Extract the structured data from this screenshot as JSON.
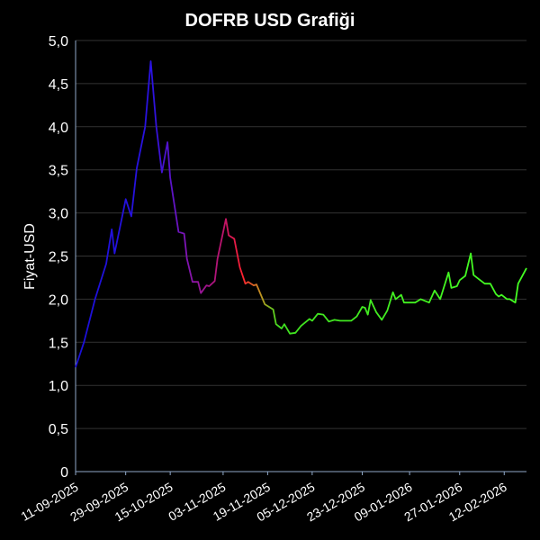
{
  "chart_data": {
    "type": "line",
    "title": "DOFRB USD Grafiği",
    "xlabel": "",
    "ylabel": "Fiyat-USD",
    "ylim": [
      0,
      5.0
    ],
    "yticks": [
      "0",
      "0,5",
      "1,0",
      "1,5",
      "2,0",
      "2,5",
      "3,0",
      "3,5",
      "4,0",
      "4,5",
      "5,0"
    ],
    "xticks": [
      "11-09-2025",
      "29-09-2025",
      "15-10-2025",
      "03-11-2025",
      "19-11-2025",
      "05-12-2025",
      "23-12-2025",
      "09-01-2026",
      "27-01-2026",
      "12-02-2026"
    ],
    "grid": "horizontal",
    "background": "#000000",
    "gridColor": "#333333",
    "axisColor": "#8fa8c8",
    "lineColors": [
      "#1a10d8",
      "#2a12e0",
      "#7a14b8",
      "#c01468",
      "#ff2030",
      "#c09020",
      "#40e020",
      "#44ff22"
    ],
    "x": [
      "2025-09-11",
      "2025-09-14",
      "2025-09-18",
      "2025-09-22",
      "2025-09-24",
      "2025-09-25",
      "2025-09-28",
      "2025-09-29",
      "2025-10-01",
      "2025-10-03",
      "2025-10-06",
      "2025-10-08",
      "2025-10-10",
      "2025-10-12",
      "2025-10-14",
      "2025-10-15",
      "2025-10-18",
      "2025-10-20",
      "2025-10-21",
      "2025-10-23",
      "2025-10-25",
      "2025-10-26",
      "2025-10-28",
      "2025-10-29",
      "2025-10-31",
      "2025-11-01",
      "2025-11-04",
      "2025-11-05",
      "2025-11-07",
      "2025-11-09",
      "2025-11-11",
      "2025-11-12",
      "2025-11-14",
      "2025-11-15",
      "2025-11-18",
      "2025-11-21",
      "2025-11-22",
      "2025-11-24",
      "2025-11-25",
      "2025-11-27",
      "2025-11-29",
      "2025-12-01",
      "2025-12-04",
      "2025-12-05",
      "2025-12-07",
      "2025-12-09",
      "2025-12-11",
      "2025-12-13",
      "2025-12-15",
      "2025-12-19",
      "2025-12-21",
      "2025-12-23",
      "2025-12-24",
      "2025-12-25",
      "2025-12-26",
      "2025-12-28",
      "2025-12-30",
      "2026-01-01",
      "2026-01-03",
      "2026-01-04",
      "2026-01-06",
      "2026-01-07",
      "2026-01-11",
      "2026-01-13",
      "2026-01-16",
      "2026-01-18",
      "2026-01-20",
      "2026-01-23",
      "2026-01-24",
      "2026-01-26",
      "2026-01-27",
      "2026-01-29",
      "2026-01-31",
      "2026-02-01",
      "2026-02-03",
      "2026-02-05",
      "2026-02-07",
      "2026-02-09",
      "2026-02-10",
      "2026-02-11",
      "2026-02-13",
      "2026-02-14",
      "2026-02-16",
      "2026-02-17",
      "2026-02-20"
    ],
    "values": [
      1.21,
      1.5,
      2.0,
      2.41,
      2.81,
      2.53,
      3.0,
      3.16,
      2.96,
      3.52,
      4.0,
      4.76,
      4.0,
      3.47,
      3.82,
      3.41,
      2.78,
      2.76,
      2.47,
      2.2,
      2.2,
      2.07,
      2.16,
      2.15,
      2.21,
      2.47,
      2.93,
      2.74,
      2.7,
      2.37,
      2.18,
      2.2,
      2.16,
      2.17,
      1.94,
      1.88,
      1.71,
      1.66,
      1.71,
      1.6,
      1.61,
      1.69,
      1.77,
      1.75,
      1.83,
      1.82,
      1.74,
      1.76,
      1.75,
      1.75,
      1.8,
      1.91,
      1.9,
      1.82,
      1.99,
      1.85,
      1.76,
      1.87,
      2.08,
      2.0,
      2.05,
      1.96,
      1.96,
      2.0,
      1.96,
      2.1,
      2.0,
      2.31,
      2.13,
      2.15,
      2.22,
      2.27,
      2.53,
      2.28,
      2.23,
      2.18,
      2.18,
      2.06,
      2.03,
      2.05,
      2.0,
      2.0,
      1.96,
      2.18,
      2.36
    ]
  }
}
